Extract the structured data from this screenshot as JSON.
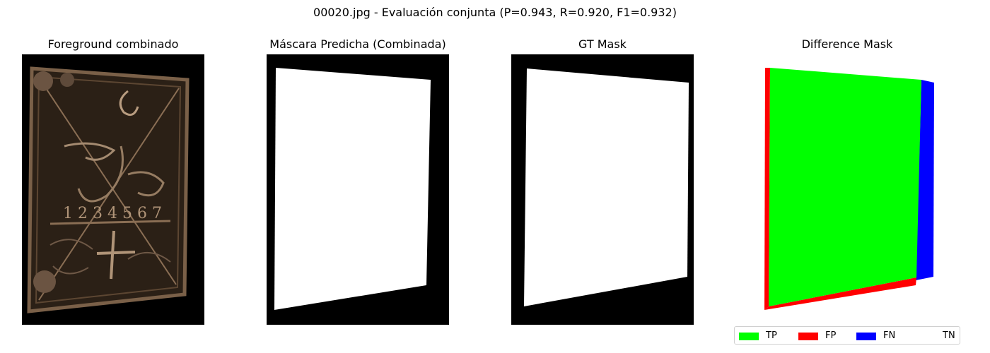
{
  "suptitle": "00020.jpg - Evaluación conjunta  (P=0.943, R=0.920, F1=0.932)",
  "panels": [
    {
      "title": "Foreground combinado"
    },
    {
      "title": "Máscara Predicha (Combinada)"
    },
    {
      "title": "GT Mask"
    },
    {
      "title": "Difference Mask"
    }
  ],
  "colors": {
    "tp": "#00ff00",
    "fp": "#ff0000",
    "fn": "#0000ff",
    "tn": "#ffffff",
    "mask_bg": "#000000",
    "mask_fg": "#ffffff"
  },
  "legend": {
    "items": [
      {
        "label": "TP",
        "color": "#00ff00"
      },
      {
        "label": "FP",
        "color": "#ff0000"
      },
      {
        "label": "FN",
        "color": "#0000ff"
      },
      {
        "label": "TN",
        "color": "#ffffff"
      }
    ]
  },
  "chart_data": {
    "type": "other",
    "metrics": {
      "P": 0.943,
      "R": 0.92,
      "F1": 0.932
    },
    "legend_placement": "lower-right"
  }
}
